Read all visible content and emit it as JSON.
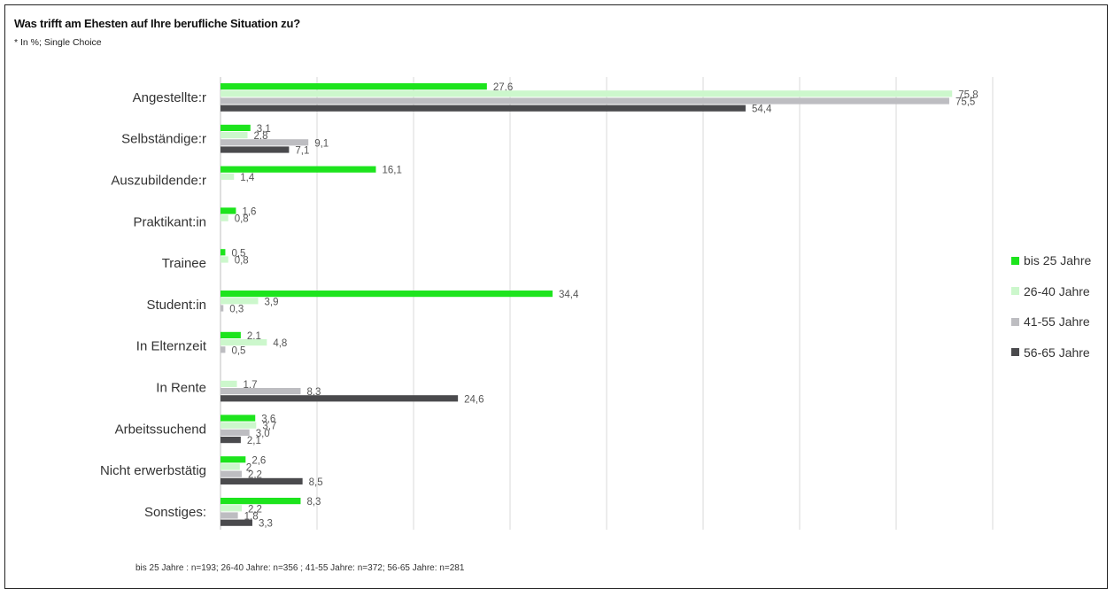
{
  "header": {
    "title": "Was trifft am Ehesten auf Ihre berufliche Situation zu?",
    "subtitle": "* In %; Single Choice"
  },
  "footer": {
    "note": "bis 25 Jahre : n=193; 26-40 Jahre: n=356 ; 41-55 Jahre: n=372; 56-65 Jahre: n=281"
  },
  "chart_data": {
    "type": "bar",
    "orientation": "horizontal",
    "categories": [
      "Angestellte:r",
      "Selbständige:r",
      "Auszubildende:r",
      "Praktikant:in",
      "Trainee",
      "Student:in",
      "In Elternzeit",
      "In Rente",
      "Arbeitssuchend",
      "Nicht erwerbstätig",
      "Sonstiges:"
    ],
    "series": [
      {
        "name": "bis 25 Jahre",
        "color": "#1de41d",
        "values": [
          27.6,
          3.1,
          16.1,
          1.6,
          0.5,
          34.4,
          2.1,
          null,
          3.6,
          2.6,
          8.3
        ],
        "labels": [
          "27,6",
          "3,1",
          "16,1",
          "1,6",
          "0,5",
          "34,4",
          "2,1",
          "",
          "3,6",
          "2,6",
          "8,3"
        ]
      },
      {
        "name": "26-40 Jahre",
        "color": "#ccf7cc",
        "values": [
          75.8,
          2.8,
          1.4,
          0.8,
          0.8,
          3.9,
          4.8,
          1.7,
          3.7,
          2,
          2.2
        ],
        "labels": [
          "75,8",
          "2,8",
          "1,4",
          "0,8",
          "0,8",
          "3,9",
          "4,8",
          "1,7",
          "3,7",
          "2",
          "2,2"
        ]
      },
      {
        "name": "41-55 Jahre",
        "color": "#bdbdc1",
        "values": [
          75.5,
          9.1,
          null,
          null,
          null,
          0.3,
          0.5,
          8.3,
          3.0,
          2.2,
          1.8
        ],
        "labels": [
          "75,5",
          "9,1",
          "",
          "",
          "",
          "0,3",
          "0,5",
          "8,3",
          "3,0",
          "2,2",
          "1,8"
        ]
      },
      {
        "name": "56-65 Jahre",
        "color": "#4a4a4d",
        "values": [
          54.4,
          7.1,
          null,
          null,
          null,
          null,
          null,
          24.6,
          2.1,
          8.5,
          3.3
        ],
        "labels": [
          "54,4",
          "7,1",
          "",
          "",
          "",
          "",
          "",
          "24,6",
          "2,1",
          "8,5",
          "3,3"
        ]
      }
    ],
    "xlim": [
      0,
      80
    ],
    "grid": true,
    "legend_position": "right"
  }
}
